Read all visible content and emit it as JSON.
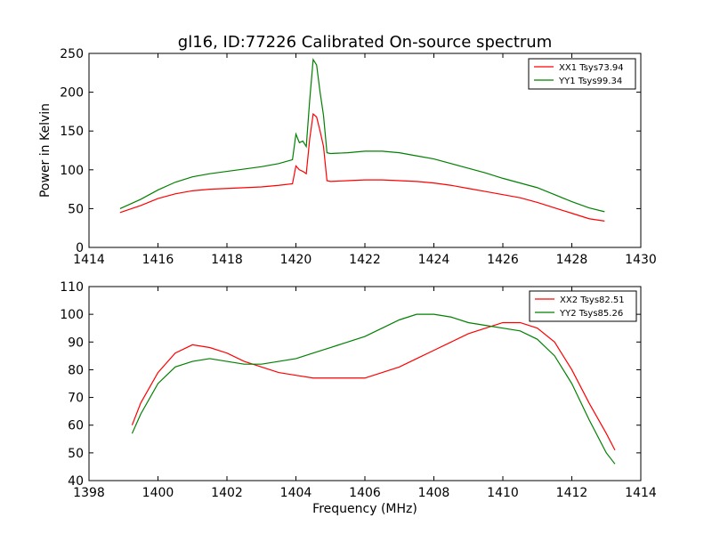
{
  "chart_data": [
    {
      "type": "line",
      "title": "gl16, ID:77226 Calibrated On-source spectrum",
      "xlabel": "",
      "ylabel": "Power in Kelvin",
      "xlim": [
        1414,
        1430
      ],
      "ylim": [
        0,
        250
      ],
      "xticks": [
        "1414",
        "1416",
        "1418",
        "1420",
        "1422",
        "1424",
        "1426",
        "1428",
        "1430"
      ],
      "yticks": [
        "0",
        "50",
        "100",
        "150",
        "200",
        "250"
      ],
      "legend_position": "top-right",
      "grid": false,
      "series": [
        {
          "name": "XX1 Tsys73.94",
          "color": "#ff0000",
          "x": [
            1414.9,
            1415.5,
            1416.0,
            1416.5,
            1417.0,
            1417.5,
            1418.0,
            1418.5,
            1419.0,
            1419.5,
            1419.9,
            1420.0,
            1420.1,
            1420.2,
            1420.3,
            1420.4,
            1420.5,
            1420.6,
            1420.7,
            1420.8,
            1420.9,
            1421.0,
            1421.5,
            1422.0,
            1422.5,
            1423.0,
            1423.5,
            1424.0,
            1424.5,
            1425.0,
            1425.5,
            1426.0,
            1426.5,
            1427.0,
            1427.5,
            1428.0,
            1428.5,
            1428.95
          ],
          "y": [
            45,
            54,
            63,
            69,
            73,
            75,
            76,
            77,
            78,
            80,
            82,
            105,
            100,
            98,
            95,
            140,
            172,
            168,
            150,
            130,
            86,
            85,
            86,
            87,
            87,
            86,
            85,
            83,
            80,
            76,
            72,
            68,
            64,
            58,
            51,
            44,
            37,
            34
          ]
        },
        {
          "name": "YY1 Tsys99.34",
          "color": "#008000",
          "x": [
            1414.9,
            1415.5,
            1416.0,
            1416.5,
            1417.0,
            1417.5,
            1418.0,
            1418.5,
            1419.0,
            1419.5,
            1419.9,
            1420.0,
            1420.1,
            1420.2,
            1420.3,
            1420.4,
            1420.5,
            1420.6,
            1420.7,
            1420.8,
            1420.9,
            1421.0,
            1421.5,
            1422.0,
            1422.5,
            1423.0,
            1423.5,
            1424.0,
            1424.5,
            1425.0,
            1425.5,
            1426.0,
            1426.5,
            1427.0,
            1427.5,
            1428.0,
            1428.5,
            1428.95
          ],
          "y": [
            50,
            62,
            74,
            84,
            91,
            95,
            98,
            101,
            104,
            108,
            113,
            146,
            135,
            137,
            130,
            190,
            242,
            235,
            200,
            170,
            122,
            121,
            122,
            124,
            124,
            122,
            118,
            114,
            108,
            102,
            96,
            89,
            83,
            77,
            68,
            59,
            51,
            46
          ]
        }
      ]
    },
    {
      "type": "line",
      "title": "",
      "xlabel": "Frequency (MHz)",
      "ylabel": "",
      "xlim": [
        1398,
        1414
      ],
      "ylim": [
        40,
        110
      ],
      "xticks": [
        "1398",
        "1400",
        "1402",
        "1404",
        "1406",
        "1408",
        "1410",
        "1412",
        "1414"
      ],
      "yticks": [
        "40",
        "50",
        "60",
        "70",
        "80",
        "90",
        "100",
        "110"
      ],
      "legend_position": "top-right",
      "grid": false,
      "series": [
        {
          "name": "XX2 Tsys82.51",
          "color": "#ff0000",
          "x": [
            1399.25,
            1399.5,
            1400.0,
            1400.5,
            1401.0,
            1401.5,
            1402.0,
            1402.5,
            1403.0,
            1403.5,
            1404.0,
            1404.5,
            1405.0,
            1405.5,
            1406.0,
            1406.5,
            1407.0,
            1407.5,
            1408.0,
            1408.5,
            1409.0,
            1409.5,
            1410.0,
            1410.5,
            1411.0,
            1411.5,
            1412.0,
            1412.5,
            1413.0,
            1413.25
          ],
          "y": [
            60,
            68,
            79,
            86,
            89,
            88,
            86,
            83,
            81,
            79,
            78,
            77,
            77,
            77,
            77,
            79,
            81,
            84,
            87,
            90,
            93,
            95,
            97,
            97,
            95,
            90,
            80,
            68,
            57,
            51
          ]
        },
        {
          "name": "YY2 Tsys85.26",
          "color": "#008000",
          "x": [
            1399.25,
            1399.5,
            1400.0,
            1400.5,
            1401.0,
            1401.5,
            1402.0,
            1402.5,
            1403.0,
            1403.5,
            1404.0,
            1404.5,
            1405.0,
            1405.5,
            1406.0,
            1406.5,
            1407.0,
            1407.5,
            1408.0,
            1408.5,
            1409.0,
            1409.5,
            1410.0,
            1410.5,
            1411.0,
            1411.5,
            1412.0,
            1412.5,
            1413.0,
            1413.25
          ],
          "y": [
            57,
            64,
            75,
            81,
            83,
            84,
            83,
            82,
            82,
            83,
            84,
            86,
            88,
            90,
            92,
            95,
            98,
            100,
            100,
            99,
            97,
            96,
            95,
            94,
            91,
            85,
            75,
            62,
            50,
            46
          ]
        }
      ]
    }
  ]
}
